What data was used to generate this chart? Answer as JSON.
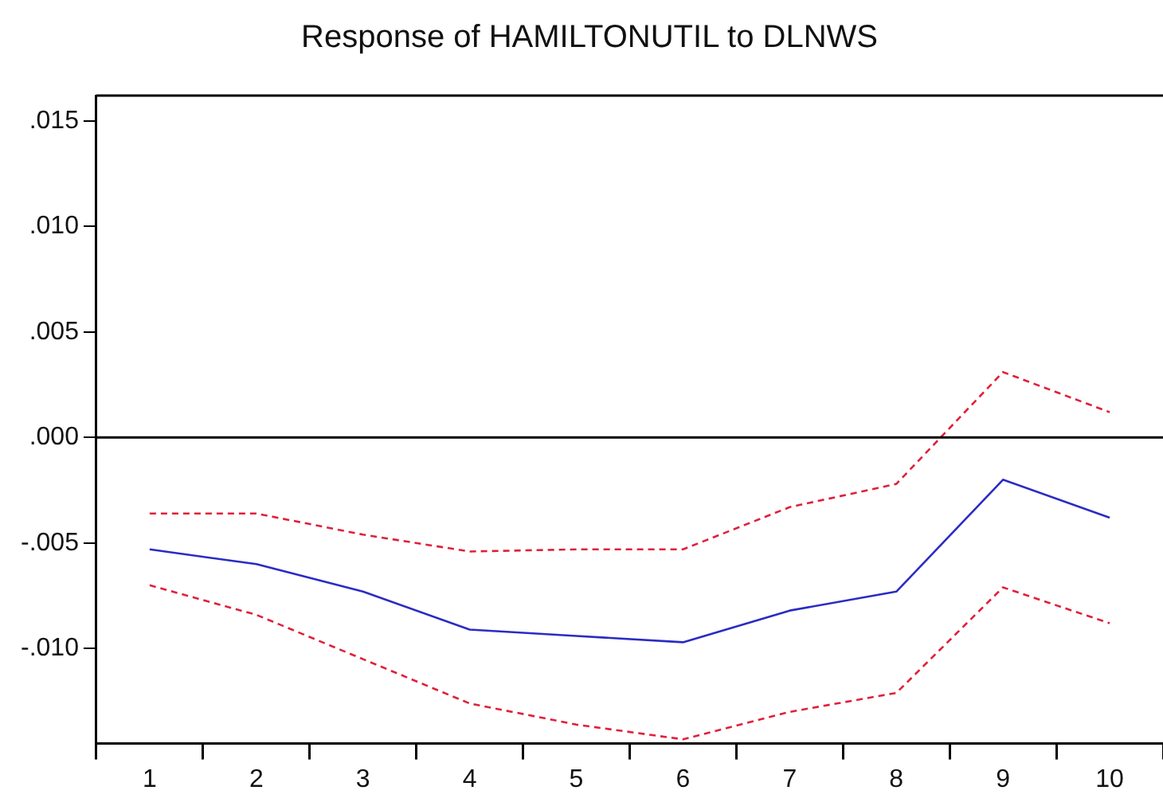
{
  "chart_data": {
    "type": "line",
    "title": "Response of HAMILTONUTIL to DLNWS",
    "categories": [
      "1",
      "2",
      "3",
      "4",
      "5",
      "6",
      "7",
      "8",
      "9",
      "10"
    ],
    "series": [
      {
        "color": "#2b2bc4",
        "line_style": "solid",
        "values": [
          -0.0053,
          -0.006,
          -0.0073,
          -0.0091,
          -0.0094,
          -0.0097,
          -0.0082,
          -0.0073,
          -0.002,
          -0.0038
        ]
      },
      {
        "color": "#e0203a",
        "line_style": "dashed",
        "values": [
          -0.0036,
          -0.0036,
          -0.0046,
          -0.0054,
          -0.0053,
          -0.0053,
          -0.0033,
          -0.0022,
          0.0031,
          0.0012
        ]
      },
      {
        "color": "#e0203a",
        "line_style": "dashed",
        "values": [
          -0.007,
          -0.0084,
          -0.0105,
          -0.0126,
          -0.0136,
          -0.0143,
          -0.013,
          -0.0121,
          -0.0071,
          -0.0088
        ]
      }
    ],
    "ylim": [
      -0.0145,
      0.0162
    ],
    "yticks": [
      {
        "value": -0.01,
        "label": "-.010"
      },
      {
        "value": -0.005,
        "label": "-.005"
      },
      {
        "value": 0,
        "label": ".000"
      },
      {
        "value": 0.005,
        "label": ".005"
      },
      {
        "value": 0.01,
        "label": ".010"
      },
      {
        "value": 0.015,
        "label": ".015"
      }
    ],
    "ref_lines": [
      {
        "axis": "y",
        "value": 0,
        "color": "#000000"
      }
    ],
    "grid": false,
    "legend": false,
    "marker": "none"
  }
}
